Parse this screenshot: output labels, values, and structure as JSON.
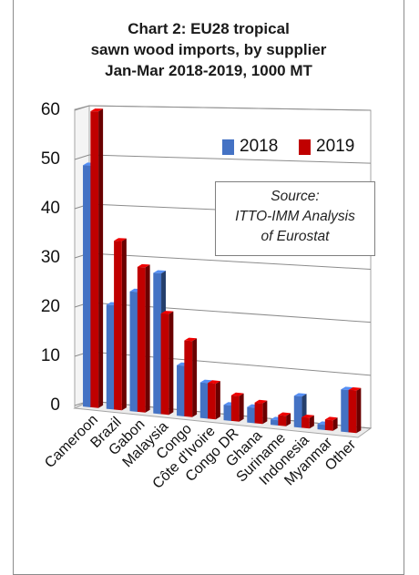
{
  "chart_data": {
    "type": "bar",
    "title_lines": [
      "Chart 2: EU28 tropical",
      "sawn wood imports, by supplier",
      "Jan-Mar 2018-2019, 1000 MT"
    ],
    "categories": [
      "Cameroon",
      "Brazil",
      "Gabon",
      "Malaysia",
      "Congo",
      "Côte d'Ivoire",
      "Congo DR",
      "Ghana",
      "Suriname",
      "Indonesia",
      "Myanmar",
      "Other"
    ],
    "series": [
      {
        "name": "2018",
        "color": "#4472c4",
        "values": [
          49,
          21,
          24,
          28,
          10,
          7,
          3,
          3,
          1,
          6,
          1,
          8
        ]
      },
      {
        "name": "2019",
        "color": "#c00000",
        "values": [
          60,
          34,
          29,
          20,
          15,
          7,
          5,
          4,
          2,
          2,
          2,
          8
        ]
      }
    ],
    "ylim": [
      0,
      60
    ],
    "yticks": [
      0,
      10,
      20,
      30,
      40,
      50,
      60
    ],
    "legend_position": "top-right",
    "grid": true,
    "annotation_lines": [
      "Source:",
      "ITTO-IMM Analysis",
      "of Eurostat"
    ]
  }
}
